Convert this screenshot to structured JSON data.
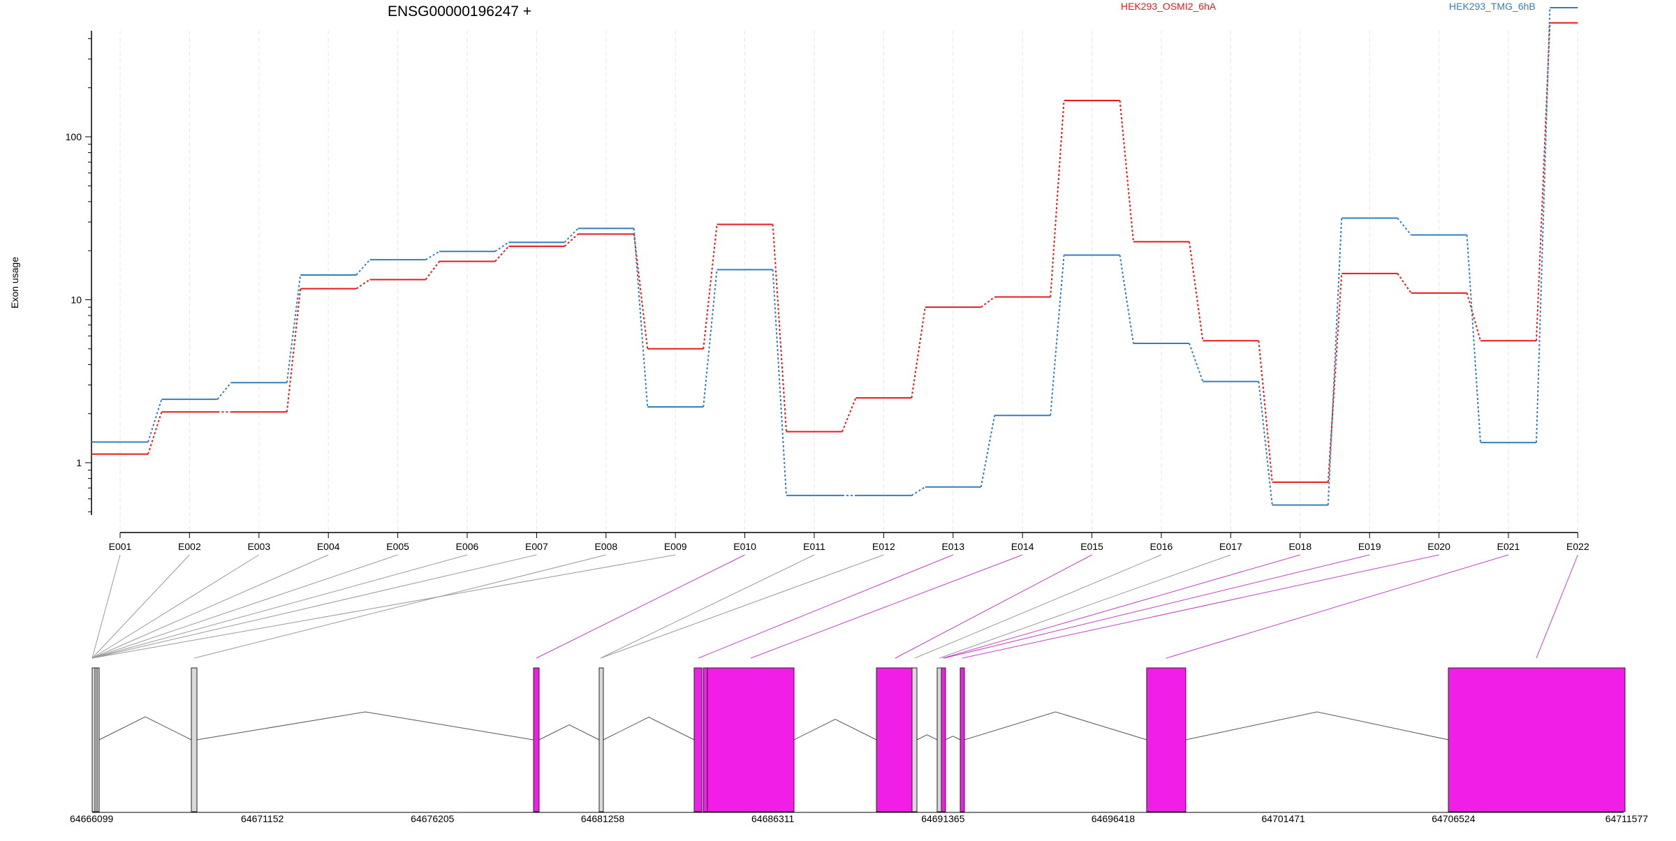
{
  "chart_data": {
    "type": "line",
    "title": "ENSG00000196247 +",
    "ylabel": "Exon usage",
    "xlabel": "",
    "y_scale": "log",
    "ylim": [
      0.48,
      1000
    ],
    "y_ticks": [
      1,
      10,
      100
    ],
    "y_tick_labels": [
      "1",
      "10",
      "100"
    ],
    "grid": "vertical dashed, light gray",
    "legend_position": "top-right",
    "categories": [
      "E001",
      "E002",
      "E003",
      "E004",
      "E005",
      "E006",
      "E007",
      "E008",
      "E009",
      "E010",
      "E011",
      "E012",
      "E013",
      "E014",
      "E015",
      "E016",
      "E017",
      "E018",
      "E019",
      "E020",
      "E021",
      "E022"
    ],
    "series": [
      {
        "name": "HEK293_OSMI2_6hA",
        "color": "#e41a1c",
        "values": [
          1.13,
          2.05,
          2.05,
          11.7,
          13.3,
          17.2,
          21.3,
          25.3,
          5.0,
          29.0,
          1.55,
          2.5,
          9.0,
          10.4,
          167,
          22.7,
          5.6,
          0.76,
          14.5,
          11.0,
          5.6,
          500
        ]
      },
      {
        "name": "HEK293_TMG_6hB",
        "color": "#377eb8",
        "values": [
          1.34,
          2.45,
          3.1,
          14.2,
          17.6,
          19.8,
          22.5,
          27.4,
          2.2,
          15.3,
          0.63,
          0.63,
          0.71,
          1.95,
          18.8,
          5.4,
          3.15,
          0.55,
          31.7,
          25.0,
          1.33,
          620
        ]
      }
    ],
    "gene_model": {
      "axis_ticks": [
        "64666099",
        "64671152",
        "64676205",
        "64681258",
        "64686311",
        "64691365",
        "64696418",
        "64701471",
        "64706524",
        "64711577"
      ],
      "exon_colors": {
        "significant": "#f01ee6",
        "normal": "#d9d9d9"
      },
      "connector_colors": {
        "significant": "#c040c0",
        "normal": "#999999"
      }
    }
  }
}
